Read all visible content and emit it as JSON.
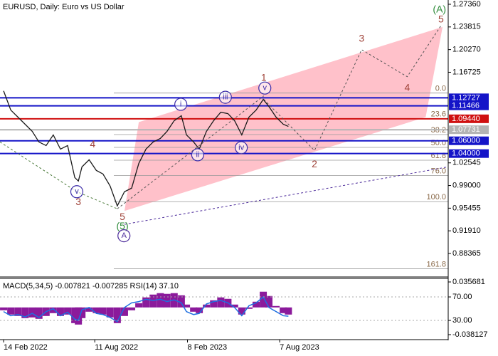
{
  "chart_data": [
    {
      "type": "line",
      "title": "EURUSD, Daily:  Euro vs US Dollar",
      "color": "#1a1a1a",
      "x": [
        0,
        14,
        28,
        42,
        56,
        69,
        83,
        97,
        111,
        125,
        139,
        146,
        153,
        167,
        181,
        194,
        208,
        222,
        236,
        250,
        264,
        278,
        292,
        306,
        319,
        333,
        347,
        357,
        371,
        382,
        396,
        410,
        424,
        438,
        451,
        465,
        479,
        493,
        507,
        518,
        532,
        546,
        556
      ],
      "values": [
        1.1381,
        1.1081,
        1.097,
        1.0859,
        1.0747,
        1.0581,
        1.0525,
        1.0692,
        1.047,
        1.0525,
        1.0025,
        0.997,
        1.0192,
        1.0303,
        1.0136,
        1.0081,
        0.9892,
        0.9581,
        0.9803,
        0.9859,
        1.0247,
        1.047,
        1.0581,
        1.0636,
        1.0747,
        1.0914,
        1.0992,
        1.0692,
        1.0581,
        1.047,
        1.0747,
        1.0914,
        1.1047,
        1.1025,
        1.0914,
        1.0692,
        1.097,
        1.1081,
        1.1247,
        1.1136,
        1.097,
        1.0859,
        1.0825
      ],
      "xlim": [
        -7,
        868
      ],
      "ylim": [
        0.8469,
        1.2803
      ],
      "yticks": [
        {
          "value": 1.2736,
          "label": "1.27360"
        },
        1.23815,
        {
          "value": 1.2027,
          "label": "1.20270"
        },
        1.16725,
        1.02545,
        {
          "value": 0.99,
          "label": "0.99000"
        },
        0.95455,
        {
          "value": 0.9191,
          "label": "0.91910"
        },
        0.88365
      ],
      "price_levels": [
        {
          "value": 1.12727,
          "color": "#1414c8"
        },
        {
          "value": 1.11466,
          "color": "#1414c8"
        },
        {
          "value": 1.0944,
          "label": "1.09440",
          "color": "#d01010"
        },
        {
          "value": 1.07731,
          "color": "#b4b4b4"
        },
        {
          "value": 1.06,
          "label": "1.06000",
          "color": "#1414c8"
        },
        {
          "value": 1.04,
          "label": "1.04000",
          "color": "#1414c8"
        }
      ],
      "fib_range": [
        0.9647,
        1.1347
      ],
      "fib_color": "#8a6a4a",
      "fib_levels": [
        {
          "value": 0,
          "label": "0.0"
        },
        23.6,
        38.2,
        {
          "value": 50,
          "label": "50.0"
        },
        61.8,
        {
          "value": 76,
          "label": "76.0"
        },
        {
          "value": 100,
          "label": "100.0"
        },
        161.8
      ],
      "channel": {
        "color": "#ffb6c1",
        "points": [
          [
            264,
            1.0892
          ],
          [
            857,
            1.2381
          ],
          [
            824,
            1.097
          ],
          [
            236,
            0.9503
          ]
        ]
      },
      "lines": [
        {
          "color": "#555555",
          "points": [
            [
              508,
              1.1247
            ],
            [
              607,
              1.0447
            ],
            [
              699,
              1.2025
            ],
            [
              788,
              1.1603
            ],
            [
              854,
              1.2403
            ]
          ]
        },
        {
          "color": "#4b2a9a",
          "points": [
            [
              236,
              0.9292
            ],
            [
              868,
              1.0192
            ]
          ]
        },
        {
          "color": "#555555",
          "points": [
            [
              222,
              0.9536
            ],
            [
              508,
              1.1303
            ]
          ]
        },
        {
          "color": "#4b7a3a",
          "points": [
            [
              -7,
              1.0581
            ],
            [
              143,
              0.9803
            ],
            [
              222,
              0.9536
            ]
          ]
        }
      ],
      "annotations": [
        {
          "text": "(A)",
          "x": 851,
          "y": 1.2647,
          "color": "#2e8b3a"
        },
        {
          "text": "5",
          "x": 854,
          "y": 1.2492,
          "color": "#a0443a"
        },
        {
          "text": "3",
          "x": 699,
          "y": 1.2192,
          "color": "#a0443a"
        },
        {
          "text": "4",
          "x": 788,
          "y": 1.1425,
          "color": "#a0443a"
        },
        {
          "text": "2",
          "x": 607,
          "y": 1.0225,
          "color": "#a0443a"
        },
        {
          "text": "1",
          "x": 508,
          "y": 1.1581,
          "color": "#a0443a"
        },
        {
          "text": "v",
          "x": 510,
          "y": 1.1425,
          "color": "#3a2aa8",
          "circled": true
        },
        {
          "text": "iii",
          "x": 433,
          "y": 1.1281,
          "color": "#3a2aa8",
          "circled": true
        },
        {
          "text": "i",
          "x": 346,
          "y": 1.117,
          "color": "#3a2aa8",
          "circled": true
        },
        {
          "text": "ii",
          "x": 379,
          "y": 1.0381,
          "color": "#3a2aa8",
          "circled": true
        },
        {
          "text": "iv",
          "x": 464,
          "y": 1.0492,
          "color": "#3a2aa8",
          "circled": true
        },
        {
          "text": "4",
          "x": 174,
          "y": 1.0536,
          "color": "#a0443a"
        },
        {
          "text": "v",
          "x": 143,
          "y": 0.9803,
          "color": "#3a2aa8",
          "circled": true
        },
        {
          "text": "3",
          "x": 146,
          "y": 0.9636,
          "color": "#a0443a"
        },
        {
          "text": "5",
          "x": 232,
          "y": 0.9403,
          "color": "#a0443a"
        },
        {
          "text": "(5)",
          "x": 232,
          "y": 0.9259,
          "color": "#2e8b3a"
        },
        {
          "text": "A",
          "x": 235,
          "y": 0.9114,
          "color": "#4b2a9a",
          "circled": true
        }
      ]
    },
    {
      "type": "bar",
      "title": "MACD(5,34,5) -0.007821 -0.007285 RSI(14) 37.10",
      "ylim": [
        -0.038127,
        0.035681
      ],
      "yticks": [
        {
          "value": 0.035681,
          "label": "0.035681"
        },
        {
          "value": -0.038127,
          "label": "-0.038127"
        }
      ],
      "y2lim": [
        5.8,
        95.5
      ],
      "y2ticks": [
        {
          "value": 70,
          "label": "70.00"
        },
        {
          "value": 30,
          "label": "30.00"
        }
      ],
      "xticks": [
        {
          "value": 0,
          "label": "14 Feb 2022"
        },
        {
          "value": 178,
          "label": "11 Aug 2022"
        },
        {
          "value": 359,
          "label": "8 Feb 2023"
        },
        {
          "value": 539,
          "label": "7 Aug 2023"
        }
      ],
      "series": [
        {
          "color": "#8b1a9b",
          "values": [
            -0.004,
            -0.01,
            -0.012,
            -0.015,
            -0.014,
            -0.016,
            -0.012,
            -0.008,
            -0.012,
            -0.01,
            -0.022,
            -0.024,
            -0.015,
            -0.006,
            -0.008,
            -0.01,
            -0.014,
            -0.022,
            -0.012,
            -0.004,
            0.006,
            0.014,
            0.018,
            0.02,
            0.019,
            0.02,
            0.017,
            0.004,
            -0.006,
            -0.008,
            0.004,
            0.01,
            0.014,
            0.012,
            0.004,
            -0.01,
            -0.002,
            0.008,
            0.022,
            0.016,
            0.002,
            -0.008,
            -0.01
          ]
        },
        {
          "color": "#1e6fe0",
          "axis": "y2",
          "values": [
            45,
            38,
            40,
            36,
            42,
            35,
            45,
            50,
            38,
            44,
            32,
            30,
            48,
            52,
            42,
            40,
            35,
            28,
            52,
            60,
            62,
            66,
            64,
            66,
            62,
            65,
            60,
            45,
            40,
            42,
            58,
            62,
            64,
            60,
            52,
            38,
            55,
            60,
            70,
            52,
            45,
            38,
            37.1
          ]
        }
      ]
    }
  ]
}
